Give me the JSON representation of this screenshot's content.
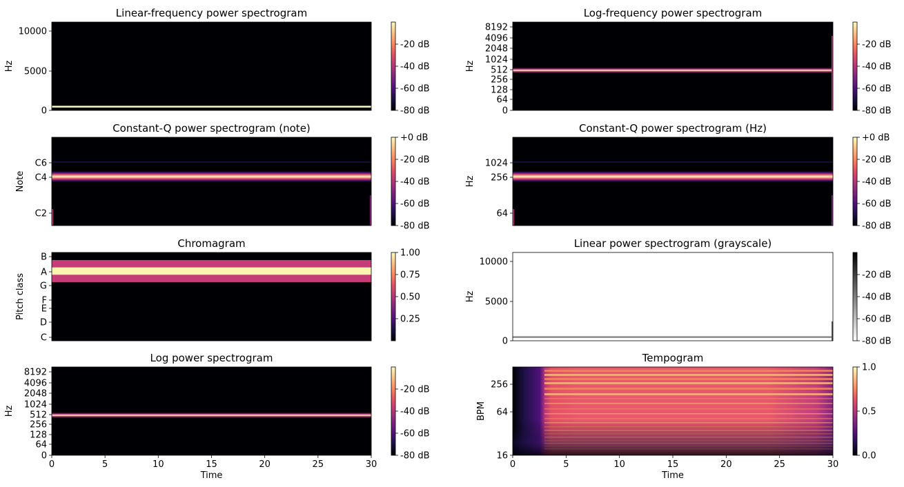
{
  "chart_data": [
    {
      "type": "heatmap",
      "title": "Linear-frequency power spectrogram",
      "xlabel": "",
      "ylabel": "Hz",
      "y_ticks": [
        "0",
        "5000",
        "10000"
      ],
      "y_scale": "linear",
      "x_range": [
        0,
        30
      ],
      "y_range": [
        0,
        11025
      ],
      "colormap": "magma",
      "colorbar_ticks": [
        "-20 dB",
        "-40 dB",
        "-60 dB",
        "-80 dB"
      ],
      "colorbar_range": [
        -80,
        0
      ],
      "features": [
        {
          "kind": "line",
          "value": 440,
          "color": "#fcfdbf"
        }
      ]
    },
    {
      "type": "heatmap",
      "title": "Log-frequency power spectrogram",
      "xlabel": "",
      "ylabel": "Hz",
      "y_ticks": [
        "0",
        "64",
        "128",
        "256",
        "512",
        "1024",
        "2048",
        "4096",
        "8192"
      ],
      "y_scale": "log",
      "x_range": [
        0,
        30
      ],
      "colormap": "magma",
      "colorbar_ticks": [
        "-20 dB",
        "-40 dB",
        "-60 dB",
        "-80 dB"
      ],
      "colorbar_range": [
        -80,
        0
      ],
      "features": [
        {
          "kind": "line",
          "value": 440,
          "color": "#fcfdbf"
        }
      ]
    },
    {
      "type": "heatmap",
      "title": "Constant-Q power spectrogram (note)",
      "xlabel": "",
      "ylabel": "Note",
      "y_ticks": [
        "C2",
        "C4",
        "C6"
      ],
      "y_scale": "log",
      "x_range": [
        0,
        30
      ],
      "colormap": "magma",
      "colorbar_ticks": [
        "+0 dB",
        "-20 dB",
        "-40 dB",
        "-60 dB",
        "-80 dB"
      ],
      "colorbar_range": [
        -80,
        0
      ],
      "features": [
        {
          "kind": "band",
          "value": "A4",
          "color": "#fcfdbf"
        }
      ]
    },
    {
      "type": "heatmap",
      "title": "Constant-Q power spectrogram (Hz)",
      "xlabel": "",
      "ylabel": "Hz",
      "y_ticks": [
        "64",
        "256",
        "1024"
      ],
      "y_scale": "log",
      "x_range": [
        0,
        30
      ],
      "colormap": "magma",
      "colorbar_ticks": [
        "+0 dB",
        "-20 dB",
        "-40 dB",
        "-60 dB",
        "-80 dB"
      ],
      "colorbar_range": [
        -80,
        0
      ],
      "features": [
        {
          "kind": "band",
          "value": 440,
          "color": "#fcfdbf"
        }
      ]
    },
    {
      "type": "heatmap",
      "title": "Chromagram",
      "xlabel": "",
      "ylabel": "Pitch class",
      "y_ticks": [
        "C",
        "D",
        "E",
        "F",
        "G",
        "A",
        "B"
      ],
      "x_range": [
        0,
        30
      ],
      "colormap": "magma",
      "colorbar_ticks": [
        "0.25",
        "0.50",
        "0.75",
        "1.00"
      ],
      "colorbar_range": [
        0,
        1
      ],
      "rows": [
        {
          "pitch": "C",
          "value": 0.0
        },
        {
          "pitch": "C#",
          "value": 0.0
        },
        {
          "pitch": "D",
          "value": 0.0
        },
        {
          "pitch": "D#",
          "value": 0.0
        },
        {
          "pitch": "E",
          "value": 0.0
        },
        {
          "pitch": "F",
          "value": 0.0
        },
        {
          "pitch": "F#",
          "value": 0.0
        },
        {
          "pitch": "G",
          "value": 0.0
        },
        {
          "pitch": "G#",
          "value": 0.55
        },
        {
          "pitch": "A",
          "value": 1.0
        },
        {
          "pitch": "A#",
          "value": 0.55
        },
        {
          "pitch": "B",
          "value": 0.0
        }
      ]
    },
    {
      "type": "heatmap",
      "title": "Linear power spectrogram (grayscale)",
      "xlabel": "",
      "ylabel": "Hz",
      "y_ticks": [
        "0",
        "5000",
        "10000"
      ],
      "y_scale": "linear",
      "x_range": [
        0,
        30
      ],
      "y_range": [
        0,
        11025
      ],
      "colormap": "gray_r",
      "colorbar_ticks": [
        "-20 dB",
        "-40 dB",
        "-60 dB",
        "-80 dB"
      ],
      "colorbar_range": [
        -80,
        0
      ],
      "features": [
        {
          "kind": "line",
          "value": 440,
          "color": "#8a8a8a"
        }
      ]
    },
    {
      "type": "heatmap",
      "title": "Log power spectrogram",
      "xlabel": "Time",
      "ylabel": "Hz",
      "x_ticks": [
        "0",
        "5",
        "10",
        "15",
        "20",
        "25",
        "30"
      ],
      "y_ticks": [
        "0",
        "64",
        "128",
        "256",
        "512",
        "1024",
        "2048",
        "4096",
        "8192"
      ],
      "y_scale": "log",
      "x_range": [
        0,
        30
      ],
      "colormap": "magma",
      "colorbar_ticks": [
        "-20 dB",
        "-40 dB",
        "-60 dB",
        "-80 dB"
      ],
      "colorbar_range": [
        -80,
        0
      ],
      "features": [
        {
          "kind": "line",
          "value": 440,
          "color": "#fcfdbf"
        }
      ]
    },
    {
      "type": "heatmap",
      "title": "Tempogram",
      "xlabel": "Time",
      "ylabel": "BPM",
      "x_ticks": [
        "0",
        "5",
        "10",
        "15",
        "20",
        "25",
        "30"
      ],
      "y_ticks": [
        "16",
        "64",
        "256"
      ],
      "y_scale": "log",
      "x_range": [
        0,
        30
      ],
      "colormap": "magma",
      "colorbar_ticks": [
        "0.0",
        "0.5",
        "1.0"
      ],
      "colorbar_range": [
        0,
        1
      ],
      "onset_time": 3.5
    }
  ]
}
